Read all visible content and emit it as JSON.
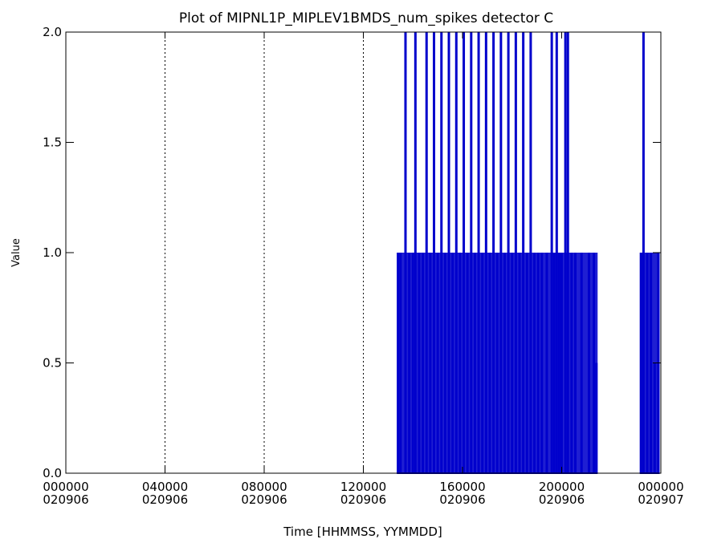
{
  "chart_data": {
    "type": "line",
    "title": "Plot of MIPNL1P_MIPLEV1BMDS_num_spikes detector C",
    "xlabel": "Time [HHMMSS, YYMMDD]",
    "ylabel": "Value",
    "xlim": [
      0,
      24
    ],
    "ylim": [
      0,
      2
    ],
    "x_unit": "hours since 000000 020906",
    "x_ticks": [
      {
        "x": 0,
        "time": "000000",
        "date": "020906"
      },
      {
        "x": 4,
        "time": "040000",
        "date": "020906"
      },
      {
        "x": 8,
        "time": "080000",
        "date": "020906"
      },
      {
        "x": 12,
        "time": "120000",
        "date": "020906"
      },
      {
        "x": 16,
        "time": "160000",
        "date": "020906"
      },
      {
        "x": 20,
        "time": "200000",
        "date": "020906"
      },
      {
        "x": 24,
        "time": "000000",
        "date": "020907"
      }
    ],
    "y_ticks": [
      "0.0",
      "0.5",
      "1.0",
      "1.5",
      "2.0"
    ],
    "y_tick_values": [
      0,
      0.5,
      1,
      1.5,
      2
    ],
    "vertical_reference_lines_x": [
      4,
      8,
      12
    ],
    "series": [
      {
        "color": "#0000cc",
        "segments": [
          {
            "x_start": 13.35,
            "x_end": 21.45,
            "spikes": [
              {
                "x": 13.4,
                "y": 1
              },
              {
                "x": 13.5,
                "y": 1
              },
              {
                "x": 13.7,
                "y": 2
              },
              {
                "x": 13.85,
                "y": 1
              },
              {
                "x": 14.0,
                "y": 1
              },
              {
                "x": 14.1,
                "y": 2
              },
              {
                "x": 14.25,
                "y": 1
              },
              {
                "x": 14.4,
                "y": 1
              },
              {
                "x": 14.55,
                "y": 2
              },
              {
                "x": 14.7,
                "y": 1
              },
              {
                "x": 14.85,
                "y": 2
              },
              {
                "x": 15.0,
                "y": 1
              },
              {
                "x": 15.15,
                "y": 2
              },
              {
                "x": 15.3,
                "y": 1
              },
              {
                "x": 15.45,
                "y": 2
              },
              {
                "x": 15.6,
                "y": 1
              },
              {
                "x": 15.75,
                "y": 2
              },
              {
                "x": 15.9,
                "y": 1
              },
              {
                "x": 16.05,
                "y": 2
              },
              {
                "x": 16.2,
                "y": 1
              },
              {
                "x": 16.35,
                "y": 2
              },
              {
                "x": 16.5,
                "y": 1
              },
              {
                "x": 16.65,
                "y": 2
              },
              {
                "x": 16.8,
                "y": 1
              },
              {
                "x": 16.95,
                "y": 2
              },
              {
                "x": 17.1,
                "y": 1
              },
              {
                "x": 17.25,
                "y": 2
              },
              {
                "x": 17.4,
                "y": 1
              },
              {
                "x": 17.55,
                "y": 2
              },
              {
                "x": 17.7,
                "y": 1
              },
              {
                "x": 17.85,
                "y": 2
              },
              {
                "x": 18.0,
                "y": 1
              },
              {
                "x": 18.15,
                "y": 2
              },
              {
                "x": 18.3,
                "y": 1
              },
              {
                "x": 18.45,
                "y": 2
              },
              {
                "x": 18.6,
                "y": 1
              },
              {
                "x": 18.75,
                "y": 2
              },
              {
                "x": 18.9,
                "y": 1
              },
              {
                "x": 19.05,
                "y": 1
              },
              {
                "x": 19.2,
                "y": 1
              },
              {
                "x": 19.4,
                "y": 1
              },
              {
                "x": 19.6,
                "y": 2
              },
              {
                "x": 19.7,
                "y": 1
              },
              {
                "x": 19.8,
                "y": 2
              },
              {
                "x": 19.9,
                "y": 1
              },
              {
                "x": 20.0,
                "y": 1
              },
              {
                "x": 20.15,
                "y": 2
              },
              {
                "x": 20.25,
                "y": 2
              },
              {
                "x": 20.4,
                "y": 1
              },
              {
                "x": 20.55,
                "y": 1
              },
              {
                "x": 20.8,
                "y": 1
              },
              {
                "x": 21.1,
                "y": 1
              },
              {
                "x": 21.3,
                "y": 1
              },
              {
                "x": 21.4,
                "y": 0.5
              }
            ]
          },
          {
            "x_start": 23.15,
            "x_end": 23.95,
            "spikes": [
              {
                "x": 23.2,
                "y": 1
              },
              {
                "x": 23.3,
                "y": 2
              },
              {
                "x": 23.45,
                "y": 1
              },
              {
                "x": 23.6,
                "y": 1
              },
              {
                "x": 23.75,
                "y": 0.5
              },
              {
                "x": 23.9,
                "y": 1
              }
            ]
          }
        ]
      }
    ]
  }
}
